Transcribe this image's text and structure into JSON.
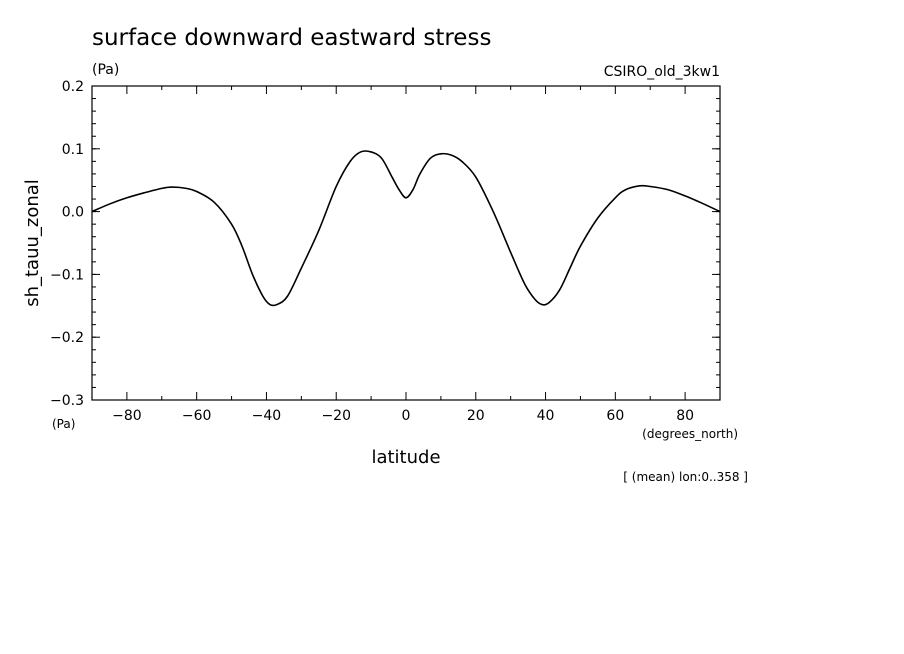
{
  "chart_data": {
    "type": "line",
    "title": "surface downward eastward stress",
    "units": "(Pa)",
    "model": "CSIRO_old_3kw1",
    "ylabel": "sh_tauu_zonal",
    "y_units": "(Pa)",
    "xlabel": "latitude",
    "x_units": "(degrees_north)",
    "footnote": "[ (mean) lon:0..358 ]",
    "xlim": [
      -90,
      90
    ],
    "ylim": [
      -0.3,
      0.2
    ],
    "xticks": [
      -80,
      -60,
      -40,
      -20,
      0,
      20,
      40,
      60,
      80
    ],
    "xtick_labels": [
      "−80",
      "−60",
      "−40",
      "−20",
      "0",
      "20",
      "40",
      "60",
      "80"
    ],
    "yticks": [
      0.2,
      0.1,
      0.0,
      -0.1,
      -0.2,
      -0.3
    ],
    "ytick_labels": [
      "0.2",
      "0.1",
      "0.0",
      "−0.1",
      "−0.2",
      "−0.3"
    ],
    "grid": false,
    "series": [
      {
        "x": [
          -90,
          -85,
          -80,
          -75,
          -70,
          -67,
          -63,
          -60,
          -55,
          -50,
          -47,
          -44,
          -41,
          -39,
          -37,
          -34,
          -30,
          -25,
          -20,
          -16,
          -13,
          -10,
          -7,
          -4,
          -2,
          0,
          2,
          4,
          7,
          10,
          13,
          16,
          20,
          25,
          30,
          34,
          37,
          39,
          41,
          44,
          47,
          50,
          55,
          60,
          63,
          67,
          70,
          75,
          80,
          85,
          90
        ],
        "y": [
          0.0,
          0.012,
          0.022,
          0.03,
          0.037,
          0.039,
          0.037,
          0.032,
          0.015,
          -0.02,
          -0.055,
          -0.1,
          -0.135,
          -0.148,
          -0.148,
          -0.135,
          -0.09,
          -0.03,
          0.04,
          0.08,
          0.095,
          0.095,
          0.085,
          0.055,
          0.035,
          0.022,
          0.035,
          0.06,
          0.085,
          0.092,
          0.09,
          0.08,
          0.055,
          0.0,
          -0.065,
          -0.115,
          -0.14,
          -0.148,
          -0.145,
          -0.125,
          -0.09,
          -0.055,
          -0.01,
          0.022,
          0.035,
          0.041,
          0.04,
          0.035,
          0.025,
          0.013,
          0.0
        ]
      }
    ]
  }
}
